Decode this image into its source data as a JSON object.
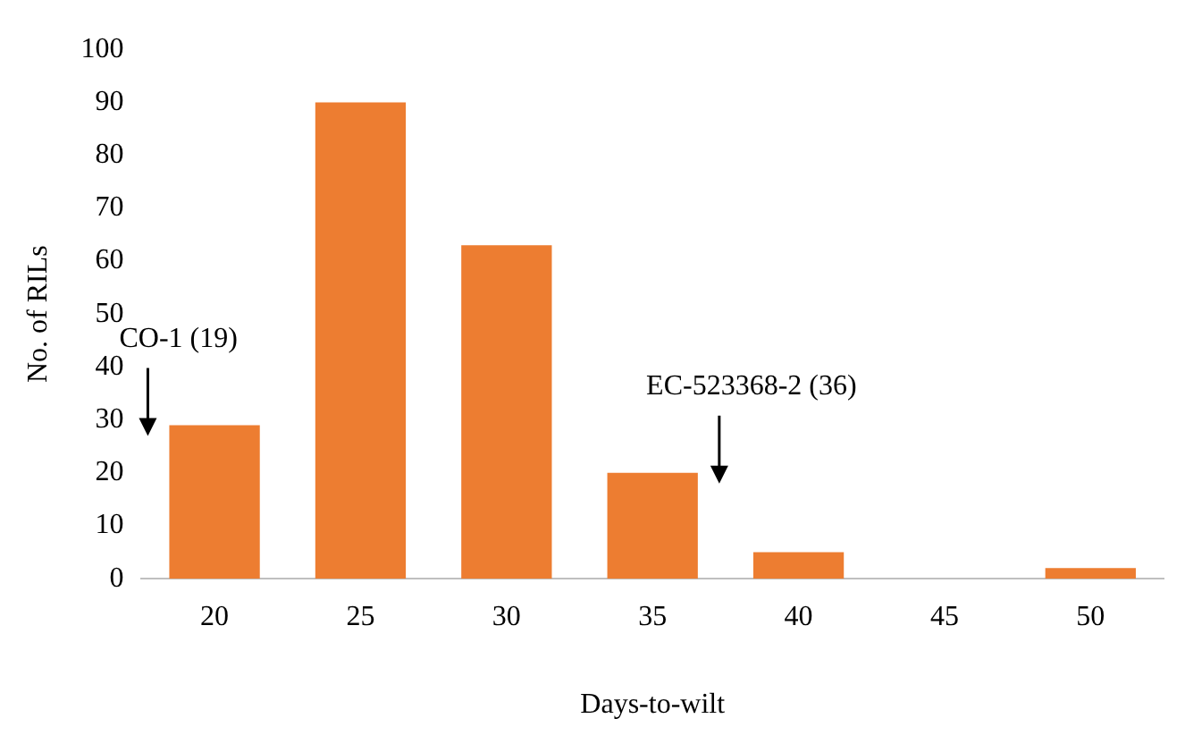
{
  "chart_data": {
    "type": "bar",
    "xlabel": "Days-to-wilt",
    "ylabel": "No. of RILs",
    "categories": [
      "20",
      "25",
      "30",
      "35",
      "40",
      "45",
      "50"
    ],
    "values": [
      29,
      90,
      63,
      20,
      5,
      0,
      2
    ],
    "color": "#ed7d31",
    "ylim": [
      0,
      100
    ],
    "yticks": [
      0,
      10,
      20,
      30,
      40,
      50,
      60,
      70,
      80,
      90,
      100
    ],
    "grid": false,
    "annotations": [
      {
        "text": "CO-1 (19)",
        "x": "20",
        "y": 29
      },
      {
        "text": "EC-523368-2 (36)",
        "x": "35",
        "y": 20
      }
    ]
  }
}
